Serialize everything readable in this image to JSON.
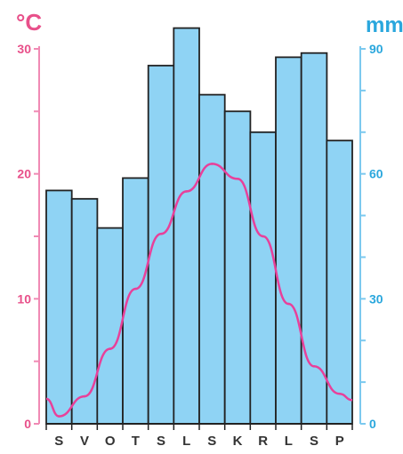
{
  "chart_data": {
    "type": "bar",
    "title": "",
    "left_axis": {
      "unit": "°C",
      "range": [
        0,
        30
      ],
      "tick_labels": [
        "0",
        "10",
        "20",
        "30"
      ]
    },
    "right_axis": {
      "unit": "mm",
      "range": [
        0,
        90
      ],
      "tick_labels": [
        "0",
        "30",
        "60",
        "90"
      ]
    },
    "categories": [
      "S",
      "V",
      "O",
      "T",
      "S",
      "L",
      "S",
      "K",
      "R",
      "L",
      "S",
      "P"
    ],
    "series": [
      {
        "type": "bar",
        "axis": "right",
        "values": [
          56,
          54,
          47,
          59,
          86,
          95,
          79,
          75,
          70,
          88,
          89,
          68
        ],
        "color": "#8fd3f4"
      },
      {
        "type": "line",
        "axis": "left",
        "values": [
          0.6,
          2.2,
          6.0,
          10.8,
          15.2,
          18.6,
          20.8,
          19.6,
          15.0,
          9.6,
          4.6,
          2.4
        ],
        "start_value": 2.0,
        "color": "#e8409a"
      }
    ],
    "grid": false,
    "legend": "none"
  }
}
